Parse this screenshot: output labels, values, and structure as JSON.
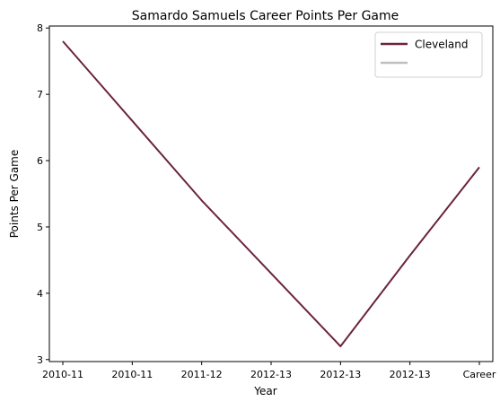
{
  "chart_data": {
    "type": "line",
    "title": "Samardo Samuels Career Points Per Game",
    "xlabel": "Year",
    "ylabel": "Points Per Game",
    "categories": [
      "2010-11",
      "2010-11",
      "2011-12",
      "2012-13",
      "2012-13",
      "2012-13",
      "Career"
    ],
    "series": [
      {
        "name": "Cleveland",
        "color": "#6b2340",
        "values": [
          7.8,
          6.6,
          5.4,
          4.3,
          3.2,
          4.57,
          5.9
        ]
      }
    ],
    "legend": {
      "placement": "top-right",
      "entries": [
        {
          "label": "Cleveland",
          "color": "#6b2340"
        },
        {
          "label": "",
          "color": "#bfbfbf"
        }
      ]
    },
    "ylim": [
      2.97,
      8.03
    ],
    "yticks": [
      3,
      4,
      5,
      6,
      7,
      8
    ],
    "grid": false
  }
}
